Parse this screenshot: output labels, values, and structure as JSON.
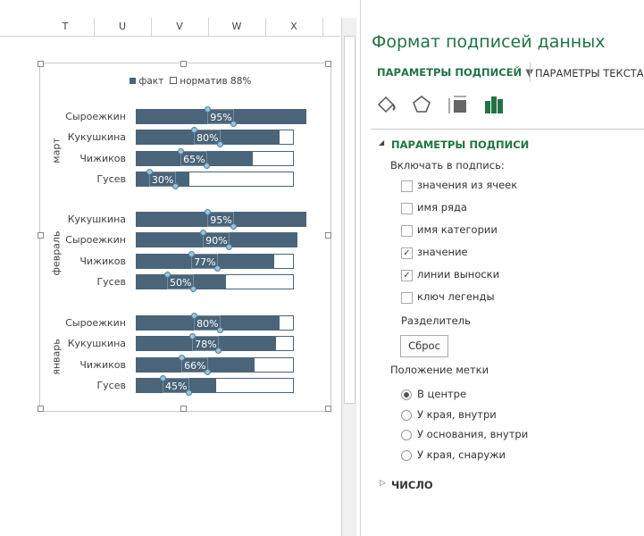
{
  "columns": [
    "T",
    "U",
    "V",
    "W",
    "X"
  ],
  "chart": {
    "legend": [
      {
        "label": "факт",
        "color": "#4a6479"
      },
      {
        "label": "норматив 88%",
        "color": "#ffffff"
      }
    ],
    "normative": 88,
    "groups": [
      {
        "label": "март",
        "rows": [
          {
            "name": "Сыроежкин",
            "value": 95,
            "label": "95%"
          },
          {
            "name": "Кукушкина",
            "value": 80,
            "label": "80%"
          },
          {
            "name": "Чижиков",
            "value": 65,
            "label": "65%"
          },
          {
            "name": "Гусев",
            "value": 30,
            "label": "30%"
          }
        ]
      },
      {
        "label": "февраль",
        "rows": [
          {
            "name": "Кукушкина",
            "value": 95,
            "label": "95%"
          },
          {
            "name": "Сыроежкин",
            "value": 90,
            "label": "90%"
          },
          {
            "name": "Чижиков",
            "value": 77,
            "label": "77%"
          },
          {
            "name": "Гусев",
            "value": 50,
            "label": "50%"
          }
        ]
      },
      {
        "label": "январь",
        "rows": [
          {
            "name": "Сыроежкин",
            "value": 80,
            "label": "80%"
          },
          {
            "name": "Кукушкина",
            "value": 78,
            "label": "78%"
          },
          {
            "name": "Чижиков",
            "value": 66,
            "label": "66%"
          },
          {
            "name": "Гусев",
            "value": 45,
            "label": "45%"
          }
        ]
      }
    ]
  },
  "panel": {
    "title": "Формат подписей данных",
    "tab_active": "ПАРАМЕТРЫ ПОДПИСЕЙ",
    "tab_other": "ПАРАМЕТРЫ ТЕКСТА",
    "icons": [
      "fill-line-icon",
      "effects-icon",
      "size-properties-icon",
      "label-options-icon"
    ],
    "section": "ПАРАМЕТРЫ ПОДПИСИ",
    "include_label": "Включать в подпись:",
    "checkboxes": [
      {
        "label": "значения из ячеек",
        "checked": false
      },
      {
        "label": "имя ряда",
        "checked": false
      },
      {
        "label": "имя категории",
        "checked": false
      },
      {
        "label": "значение",
        "checked": true
      },
      {
        "label": "линии выноски",
        "checked": true
      },
      {
        "label": "ключ легенды",
        "checked": false
      }
    ],
    "separator_label": "Разделитель",
    "reset_button": "Сброс",
    "position_label": "Положение метки",
    "radios": [
      {
        "label": "В центре",
        "checked": true
      },
      {
        "label": "У края, внутри",
        "checked": false
      },
      {
        "label": "У основания, внутри",
        "checked": false
      },
      {
        "label": "У края, снаружи",
        "checked": false
      }
    ],
    "number_section": "ЧИСЛО",
    "accent": "#217346"
  }
}
